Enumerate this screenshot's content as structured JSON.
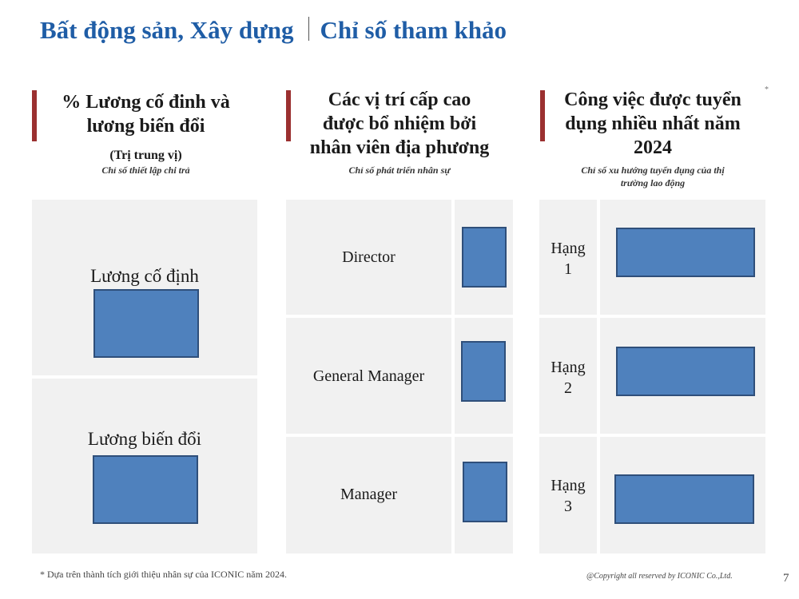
{
  "header": {
    "title_left": "Bất động sản, Xây dựng",
    "title_right": "Chỉ số tham khảo"
  },
  "columns": [
    {
      "title_line1": "% Lương cố đinh và",
      "title_line2": "lương biến đổi",
      "note": "(Trị trung vị)",
      "subtitle": "Chỉ số thiết lập chi trả",
      "rows": [
        "Lương cố định",
        "Lương biến đổi"
      ]
    },
    {
      "title_line1": "Các vị trí cấp cao",
      "title_line2": "được bổ nhiệm bởi",
      "title_line3": "nhân viên địa phương",
      "subtitle": "Chỉ số phát triển nhân sự",
      "rows": [
        "Director",
        "General Manager",
        "Manager"
      ]
    },
    {
      "title_line1": "Công việc được tuyển",
      "title_line2": "dụng nhiều nhất năm",
      "title_line3": "2024",
      "subtitle_line1": "Chỉ số xu hướng tuyển dụng của thị",
      "subtitle_line2": "trường lao động",
      "asterisk": "*",
      "rows": [
        {
          "word": "Hạng",
          "num": "1"
        },
        {
          "word": "Hạng",
          "num": "2"
        },
        {
          "word": "Hạng",
          "num": "3"
        }
      ]
    }
  ],
  "footer": {
    "footnote": "* Dựa trên thành tích giới thiệu nhân sự của ICONIC năm 2024.",
    "copyright": "@Copyright all reserved by ICONIC Co.,Ltd.",
    "page": "7"
  },
  "colors": {
    "title": "#1f5da6",
    "accent_bar": "#9b3030",
    "panel_bg": "#f1f1f1",
    "box_fill": "#4f81bd",
    "box_border": "#2f4f7a"
  }
}
